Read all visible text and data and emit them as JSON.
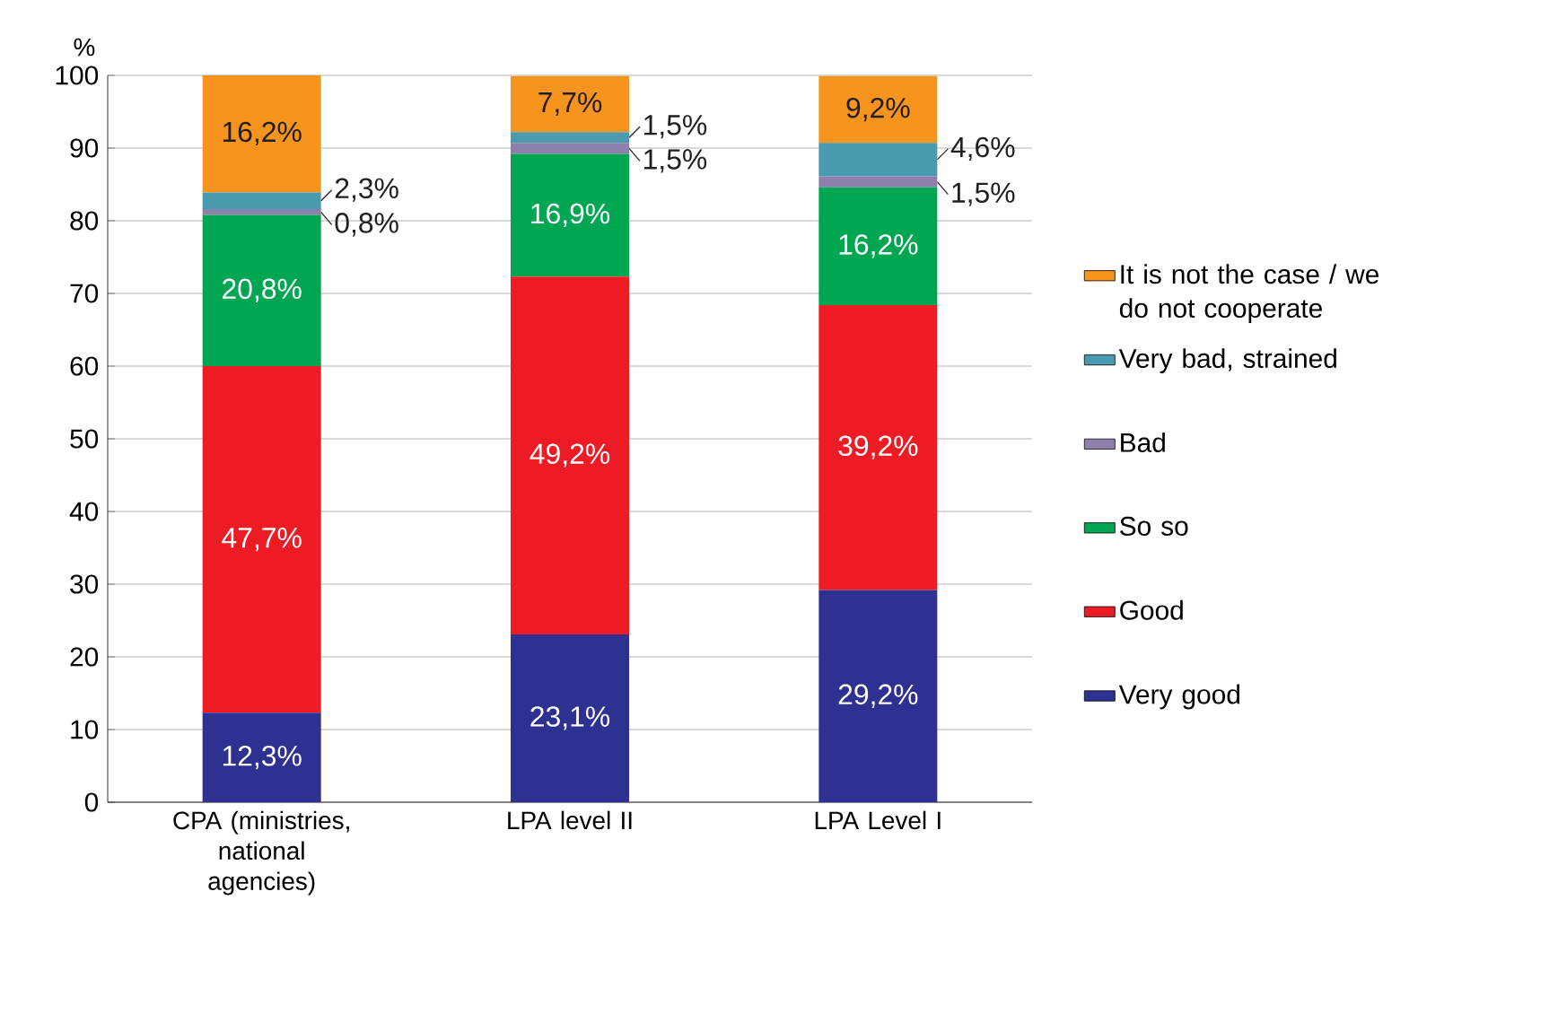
{
  "chart_data": {
    "type": "bar",
    "stacked": true,
    "ylabel": "%",
    "categories": [
      "CPA (ministries, national agencies)",
      "LPA level II",
      "LPA Level I"
    ],
    "series": [
      {
        "name": "Very good",
        "color": "#2e3192",
        "values": [
          12.3,
          23.1,
          29.2
        ],
        "value_labels": [
          "12,3%",
          "23,1%",
          "29,2%"
        ]
      },
      {
        "name": "Good",
        "color": "#ed1c24",
        "values": [
          47.7,
          49.2,
          39.2
        ],
        "value_labels": [
          "47,7%",
          "49,2%",
          "39,2%"
        ]
      },
      {
        "name": "So so",
        "color": "#00a651",
        "values": [
          20.8,
          16.9,
          16.2
        ],
        "value_labels": [
          "20,8%",
          "16,9%",
          "16,2%"
        ]
      },
      {
        "name": "Bad",
        "color": "#8c7fab",
        "values": [
          0.8,
          1.5,
          1.5
        ],
        "value_labels": [
          "0,8%",
          "1,5%",
          "1,5%"
        ]
      },
      {
        "name": "Very bad, strained",
        "color": "#4a9bb0",
        "values": [
          2.3,
          1.5,
          4.6
        ],
        "value_labels": [
          "2,3%",
          "1,5%",
          "4,6%"
        ]
      },
      {
        "name": "It is not the case / we do not cooperate",
        "color": "#f7941d",
        "values": [
          16.2,
          7.7,
          9.2
        ],
        "value_labels": [
          "16,2%",
          "7,7%",
          "9,2%"
        ]
      }
    ],
    "ylim": [
      0,
      100
    ],
    "yticks": [
      0,
      10,
      20,
      30,
      40,
      50,
      60,
      70,
      80,
      90,
      100
    ],
    "grid": "y",
    "legend": "right"
  }
}
